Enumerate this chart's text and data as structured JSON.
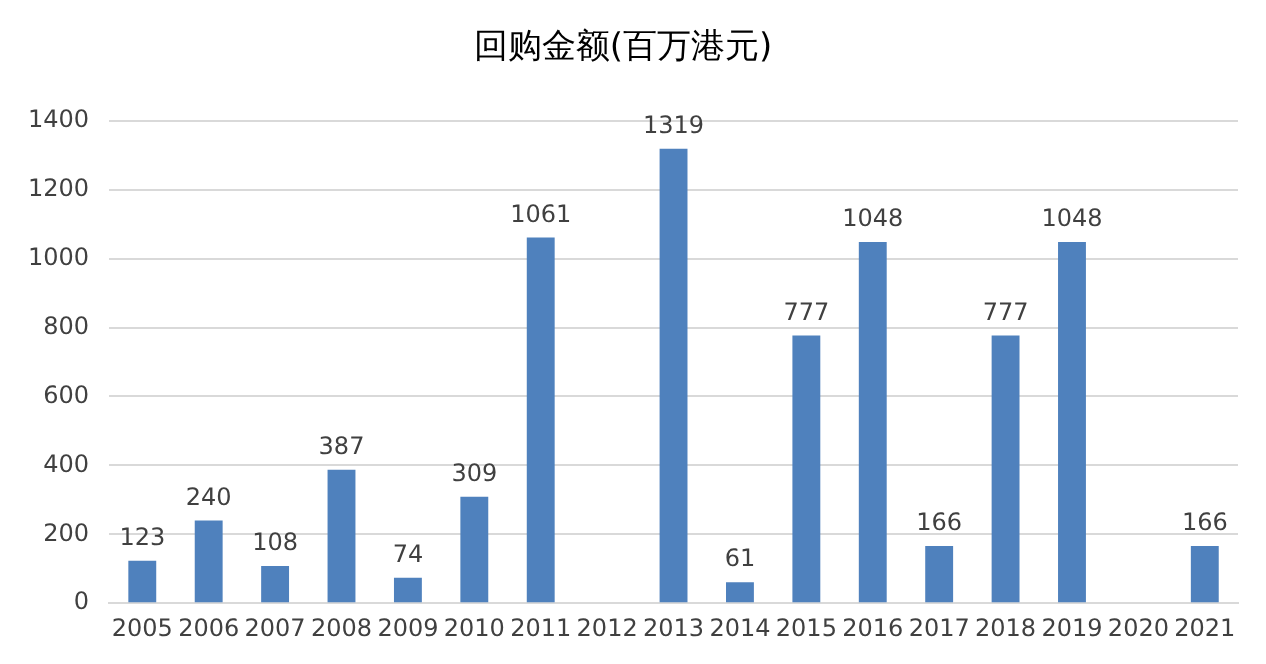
{
  "chart_data": {
    "type": "bar",
    "title": "回购金额(百万港元)",
    "categories": [
      "2005",
      "2006",
      "2007",
      "2008",
      "2009",
      "2010",
      "2011",
      "2012",
      "2013",
      "2014",
      "2015",
      "2016",
      "2017",
      "2018",
      "2019",
      "2020",
      "2021"
    ],
    "values": [
      123,
      240,
      108,
      387,
      74,
      309,
      1061,
      null,
      1319,
      61,
      777,
      1048,
      166,
      777,
      1048,
      null,
      166
    ],
    "color": "#4f81bd",
    "ylim": [
      0,
      1400
    ],
    "yticks": [
      0,
      200,
      400,
      600,
      800,
      1000,
      1200,
      1400
    ],
    "grid": "y",
    "data_labels": true
  }
}
